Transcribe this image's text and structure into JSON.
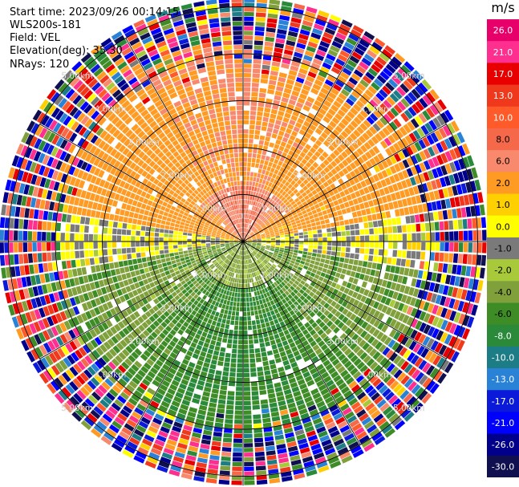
{
  "header": {
    "start_time": "Start time: 2023/09/26 00:14:15",
    "instrument": "WLS200s-181",
    "field": "Field: VEL",
    "elevation": "Elevation(deg): 35.30",
    "nrays": "NRays: 120"
  },
  "colorbar": {
    "unit": "m/s",
    "ticks": [
      "26.0",
      "21.0",
      "17.0",
      "13.0",
      "10.0",
      "8.0",
      "6.0",
      "2.0",
      "1.0",
      "0.0",
      "-1.0",
      "-2.0",
      "-4.0",
      "-6.0",
      "-8.0",
      "-10.0",
      "-13.0",
      "-17.0",
      "-21.0",
      "-26.0",
      "-30.0"
    ],
    "colors": [
      "#e8006a",
      "#ff2f8f",
      "#e80000",
      "#f0381c",
      "#ff5a2a",
      "#f5694a",
      "#f8896c",
      "#ff9a22",
      "#ffd000",
      "#ffff00",
      "#7a7a7a",
      "#a7c93a",
      "#7fa03a",
      "#3e8c26",
      "#2a8a3a",
      "#1d7d86",
      "#2a82d6",
      "#0a1ad8",
      "#0000ff",
      "#00008a",
      "#101050"
    ]
  },
  "chart_data": {
    "type": "ppi",
    "field": "VEL",
    "units": "m/s",
    "range_rings_km": [
      1.0,
      2.0,
      3.0,
      4.0,
      5.0
    ],
    "ring_labels": [
      "1.00km",
      "2.00km",
      "3.00km",
      "4.00km",
      "5.00km"
    ],
    "nrays": 120,
    "elevation_deg": 35.3,
    "vmin": -30.0,
    "vmax": 26.0,
    "velocity_pattern": {
      "north_half_dominant_ms": 6.0,
      "north_near_ms": 8.0,
      "east_west_ms": 0.0,
      "south_half_dominant_ms": -6.0,
      "south_near_ms": -2.0,
      "clean_range_km": 4.0
    }
  }
}
